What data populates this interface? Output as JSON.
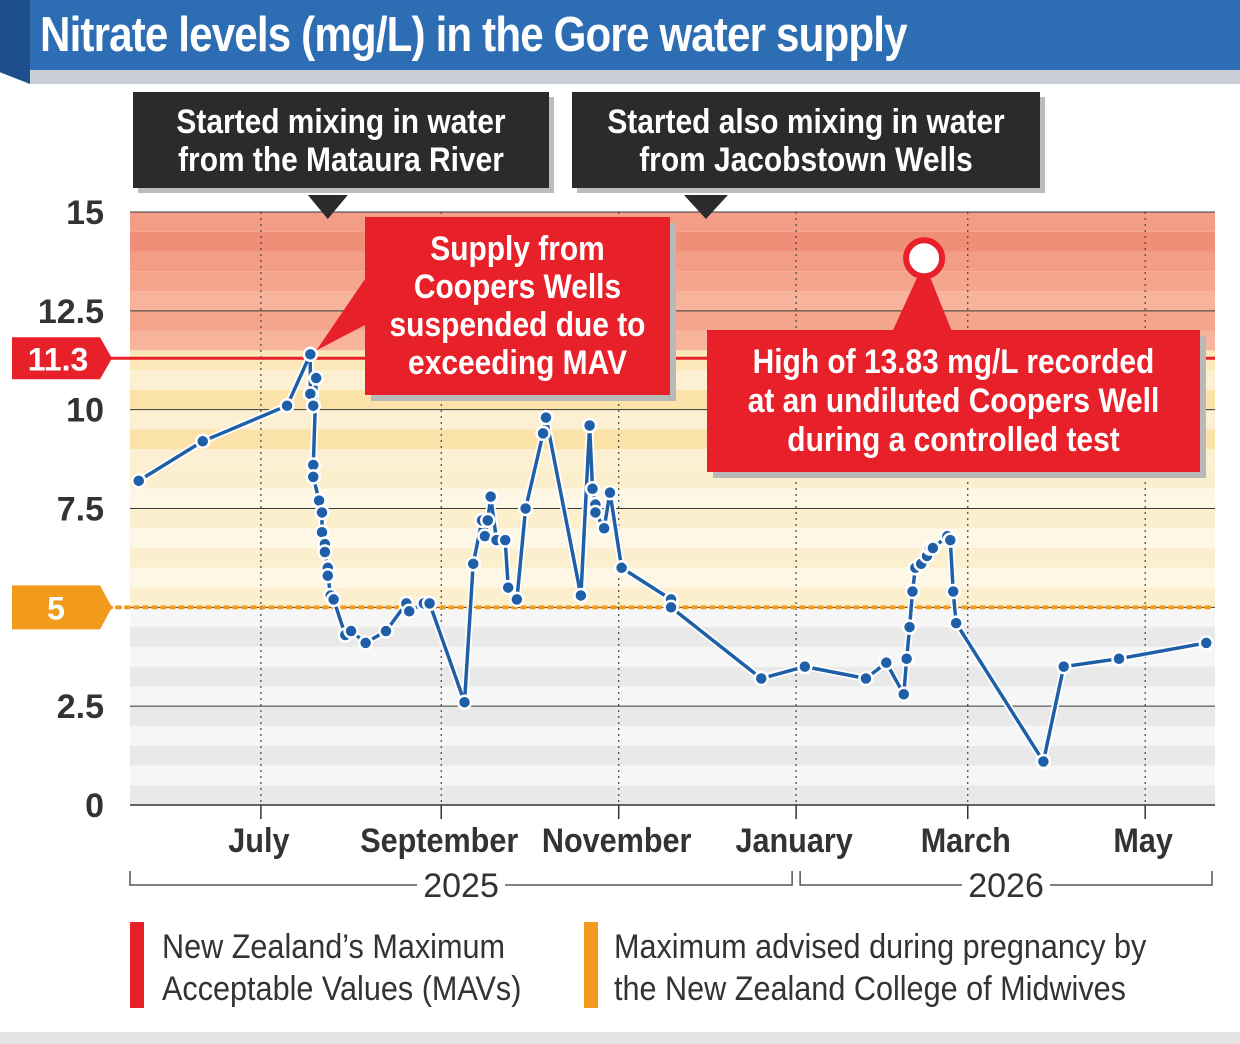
{
  "title": "Nitrate levels (mg/L) in the Gore water supply",
  "colors": {
    "banner": "#2d6db4",
    "line": "#1f5fa8",
    "mav_red": "#e8202a",
    "pregnancy_orange": "#f29a1b",
    "callout_dark": "#2b2b2b"
  },
  "chart_data": {
    "type": "line",
    "xlabel": "",
    "ylabel": "",
    "ylim": [
      0,
      15
    ],
    "yticks": [
      0,
      2.5,
      5,
      7.5,
      10,
      12.5,
      15
    ],
    "ytick_labels": [
      "0",
      "2.5",
      "5",
      "7.5",
      "10",
      "12.5",
      "15"
    ],
    "xlim": [
      "2025-05-17",
      "2026-05-25"
    ],
    "month_ticks": [
      {
        "label": "July",
        "date": "2025-07-01"
      },
      {
        "label": "September",
        "date": "2025-09-01"
      },
      {
        "label": "November",
        "date": "2025-11-01"
      },
      {
        "label": "January",
        "date": "2026-01-01"
      },
      {
        "label": "March",
        "date": "2026-03-01"
      },
      {
        "label": "May",
        "date": "2026-05-01"
      }
    ],
    "year_labels": [
      "2025",
      "2026"
    ],
    "thresholds": [
      {
        "label": "11.3",
        "value": 11.3,
        "color": "#e8202a"
      },
      {
        "label": "5",
        "value": 5,
        "color": "#f29a1b"
      }
    ],
    "series": [
      {
        "points": [
          {
            "x": "2025-05-20",
            "y": 8.2
          },
          {
            "x": "2025-06-11",
            "y": 9.2
          },
          {
            "x": "2025-07-10",
            "y": 10.1
          },
          {
            "x": "2025-07-18",
            "y": 11.4
          },
          {
            "x": "2025-07-18",
            "y": 10.4
          },
          {
            "x": "2025-07-19",
            "y": 10.1
          },
          {
            "x": "2025-07-20",
            "y": 10.8
          },
          {
            "x": "2025-07-19",
            "y": 8.6
          },
          {
            "x": "2025-07-19",
            "y": 8.3
          },
          {
            "x": "2025-07-21",
            "y": 7.7
          },
          {
            "x": "2025-07-22",
            "y": 7.4
          },
          {
            "x": "2025-07-22",
            "y": 6.9
          },
          {
            "x": "2025-07-23",
            "y": 6.6
          },
          {
            "x": "2025-07-23",
            "y": 6.4
          },
          {
            "x": "2025-07-24",
            "y": 6.0
          },
          {
            "x": "2025-07-24",
            "y": 5.8
          },
          {
            "x": "2025-07-25",
            "y": 5.3
          },
          {
            "x": "2025-07-26",
            "y": 5.2
          },
          {
            "x": "2025-07-30",
            "y": 4.3
          },
          {
            "x": "2025-08-01",
            "y": 4.4
          },
          {
            "x": "2025-08-06",
            "y": 4.1
          },
          {
            "x": "2025-08-13",
            "y": 4.4
          },
          {
            "x": "2025-08-20",
            "y": 5.1
          },
          {
            "x": "2025-08-21",
            "y": 4.9
          },
          {
            "x": "2025-08-26",
            "y": 5.1
          },
          {
            "x": "2025-08-28",
            "y": 5.1
          },
          {
            "x": "2025-09-09",
            "y": 2.6
          },
          {
            "x": "2025-09-12",
            "y": 6.1
          },
          {
            "x": "2025-09-15",
            "y": 7.2
          },
          {
            "x": "2025-09-16",
            "y": 6.8
          },
          {
            "x": "2025-09-17",
            "y": 7.2
          },
          {
            "x": "2025-09-18",
            "y": 7.8
          },
          {
            "x": "2025-09-20",
            "y": 6.7
          },
          {
            "x": "2025-09-23",
            "y": 6.7
          },
          {
            "x": "2025-09-24",
            "y": 5.5
          },
          {
            "x": "2025-09-27",
            "y": 5.2
          },
          {
            "x": "2025-09-30",
            "y": 7.5
          },
          {
            "x": "2025-10-06",
            "y": 9.4
          },
          {
            "x": "2025-10-07",
            "y": 9.8
          },
          {
            "x": "2025-10-19",
            "y": 5.3
          },
          {
            "x": "2025-10-22",
            "y": 9.6
          },
          {
            "x": "2025-10-23",
            "y": 8.0
          },
          {
            "x": "2025-10-24",
            "y": 7.6
          },
          {
            "x": "2025-10-24",
            "y": 7.4
          },
          {
            "x": "2025-10-27",
            "y": 7.0
          },
          {
            "x": "2025-10-29",
            "y": 7.9
          },
          {
            "x": "2025-11-02",
            "y": 6.0
          },
          {
            "x": "2025-11-19",
            "y": 5.2
          },
          {
            "x": "2025-11-19",
            "y": 5.0
          },
          {
            "x": "2025-12-20",
            "y": 3.2
          },
          {
            "x": "2026-01-04",
            "y": 3.5
          },
          {
            "x": "2026-01-25",
            "y": 3.2
          },
          {
            "x": "2026-02-01",
            "y": 3.6
          },
          {
            "x": "2026-02-07",
            "y": 2.8
          },
          {
            "x": "2026-02-08",
            "y": 3.7
          },
          {
            "x": "2026-02-09",
            "y": 4.5
          },
          {
            "x": "2026-02-10",
            "y": 5.4
          },
          {
            "x": "2026-02-11",
            "y": 6.0
          },
          {
            "x": "2026-02-13",
            "y": 6.1
          },
          {
            "x": "2026-02-15",
            "y": 6.3
          },
          {
            "x": "2026-02-16",
            "y": 6.5
          },
          {
            "x": "2026-02-17",
            "y": 6.5
          },
          {
            "x": "2026-02-22",
            "y": 6.8
          },
          {
            "x": "2026-02-23",
            "y": 6.7
          },
          {
            "x": "2026-02-24",
            "y": 5.4
          },
          {
            "x": "2026-02-25",
            "y": 4.6
          },
          {
            "x": "2026-03-27",
            "y": 1.1
          },
          {
            "x": "2026-04-03",
            "y": 3.5
          },
          {
            "x": "2026-04-22",
            "y": 3.7
          },
          {
            "x": "2026-05-22",
            "y": 4.1
          }
        ]
      }
    ],
    "highlight_point": {
      "x": "2026-02-14",
      "y": 13.83
    },
    "annotations": [
      {
        "text": [
          "Started mixing in water",
          "from the Mataura River"
        ],
        "x": "2025-07-24"
      },
      {
        "text": [
          "Started also mixing in water",
          "from Jacobstown Wells"
        ],
        "x": "2025-12-01"
      },
      {
        "text": [
          "Supply from",
          "Coopers Wells",
          "suspended due to",
          "exceeding MAV"
        ],
        "x": "2025-07-18"
      },
      {
        "text": [
          "High of 13.83 mg/L recorded",
          "at an undiluted Coopers Well",
          "during a controlled test"
        ],
        "x": "2026-02-14"
      }
    ]
  },
  "legend": [
    {
      "color": "#e8202a",
      "lines": [
        "New Zealand’s Maximum",
        "Acceptable Values (MAVs)"
      ]
    },
    {
      "color": "#f29a1b",
      "lines": [
        "Maximum advised during pregnancy by",
        "the New Zealand College of Midwives"
      ]
    }
  ]
}
